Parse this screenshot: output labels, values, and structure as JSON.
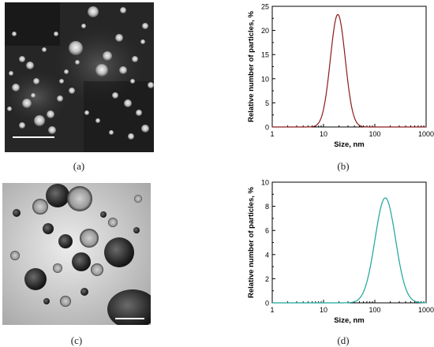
{
  "panels": {
    "a": {
      "label": "(a)"
    },
    "b": {
      "label": "(b)"
    },
    "c": {
      "label": "(c)"
    },
    "d": {
      "label": "(d)"
    }
  },
  "colors": {
    "curve_b": "#8b1a1a",
    "curve_d": "#1aa59a",
    "axis": "#000000"
  },
  "chart_data": [
    {
      "type": "line",
      "xscale": "log",
      "xlabel": "Size, nm",
      "ylabel": "Relative number of particles, %",
      "xlim": [
        1,
        1000
      ],
      "ylim": [
        0,
        25
      ],
      "xticks": [
        1,
        10,
        100,
        1000
      ],
      "xtick_labels": [
        "1",
        "10",
        "100",
        "1000"
      ],
      "yticks": [
        0,
        5,
        10,
        15,
        20,
        25
      ],
      "ytick_labels": [
        "0",
        "5",
        "10",
        "15",
        "20",
        "25"
      ],
      "series": [
        {
          "peak_x": 19,
          "peak_y": 23.3,
          "log_sigma": 0.145
        }
      ]
    },
    {
      "type": "line",
      "xscale": "log",
      "xlabel": "Size, nm",
      "ylabel": "Relative number of particles, %",
      "xlim": [
        1,
        1000
      ],
      "ylim": [
        0,
        10
      ],
      "xticks": [
        1,
        10,
        100,
        1000
      ],
      "xtick_labels": [
        "1",
        "10",
        "100",
        "1000"
      ],
      "yticks": [
        0,
        2,
        4,
        6,
        8,
        10
      ],
      "ytick_labels": [
        "0",
        "2",
        "4",
        "6",
        "8",
        "10"
      ],
      "series": [
        {
          "peak_x": 160,
          "peak_y": 8.7,
          "log_sigma": 0.2
        }
      ]
    }
  ]
}
